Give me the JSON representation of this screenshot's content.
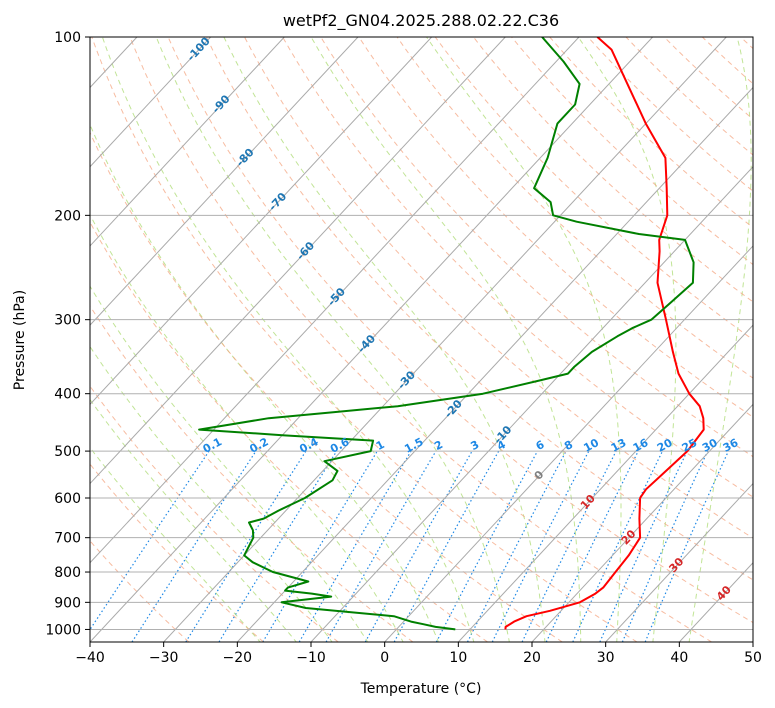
{
  "chart_data": {
    "type": "line",
    "title": "wetPf2_GN04.2025.288.02.22.C36",
    "xlabel": "Temperature (°C)",
    "ylabel": "Pressure (hPa)",
    "xlim": [
      -40,
      50
    ],
    "ylim": [
      1050,
      100
    ],
    "y_scale": "log",
    "grid": true,
    "x_ticks": [
      "−40",
      "−30",
      "−20",
      "−10",
      "0",
      "10",
      "20",
      "30",
      "40",
      "50"
    ],
    "x_tick_values": [
      -40,
      -30,
      -20,
      -10,
      0,
      10,
      20,
      30,
      40,
      50
    ],
    "y_ticks": [
      "100",
      "200",
      "300",
      "400",
      "500",
      "600",
      "700",
      "800",
      "900",
      "1000"
    ],
    "y_tick_values": [
      100,
      200,
      300,
      400,
      500,
      600,
      700,
      800,
      900,
      1000
    ],
    "colors": {
      "temperature": "#ff0000",
      "dewpoint": "#008000",
      "isotherm": "#aaaaaa",
      "dry_adiabat": "#f4a582",
      "moist_adiabat": "#a6d96a",
      "mixing_ratio": "#1e88e5",
      "isotherm_label": "#1f77b4",
      "adiabat_label": "#d62728"
    },
    "series": [
      {
        "id": "temperature",
        "pressure": [
          1000,
          990,
          970,
          950,
          930,
          900,
          870,
          850,
          800,
          750,
          700,
          650,
          600,
          580,
          550,
          500,
          460,
          440,
          420,
          400,
          370,
          340,
          300,
          260,
          230,
          220,
          200,
          180,
          160,
          140,
          120,
          105,
          100
        ],
        "temperature": [
          14.8,
          14.5,
          15,
          16,
          18.5,
          21.5,
          22.5,
          22.8,
          22.5,
          22.2,
          21.5,
          19,
          16.5,
          16.2,
          16.5,
          17,
          16.5,
          15,
          13,
          10,
          6,
          2.5,
          -2.5,
          -8.3,
          -12,
          -13.5,
          -15.5,
          -19,
          -23,
          -30,
          -37.5,
          -44,
          -47.5
        ]
      },
      {
        "id": "dewpoint",
        "pressure": [
          1000,
          990,
          980,
          970,
          950,
          920,
          900,
          880,
          870,
          860,
          850,
          830,
          800,
          770,
          750,
          700,
          680,
          660,
          650,
          630,
          600,
          560,
          540,
          520,
          500,
          480,
          470,
          460,
          440,
          430,
          420,
          400,
          380,
          370,
          360,
          340,
          320,
          310,
          300,
          280,
          260,
          240,
          220,
          215,
          205,
          200,
          190,
          180,
          160,
          140,
          130,
          120,
          110,
          100
        ],
        "temperature": [
          8,
          5,
          3,
          1,
          -2,
          -15,
          -19,
          -13,
          -16,
          -20,
          -20,
          -18,
          -24,
          -28,
          -30,
          -31,
          -32,
          -33.5,
          -32,
          -31,
          -29,
          -27.5,
          -28,
          -31,
          -26,
          -27,
          -40,
          -52,
          -44,
          -36,
          -28,
          -18,
          -12,
          -9,
          -9,
          -8.5,
          -7,
          -6,
          -4.5,
          -4,
          -3.5,
          -6,
          -10,
          -17,
          -27,
          -31,
          -33,
          -37,
          -39,
          -42,
          -42,
          -44,
          -49,
          -55
        ]
      }
    ],
    "isotherm_labels": [
      "-100",
      "-90",
      "-80",
      "-70",
      "-60",
      "-50",
      "-40",
      "-30",
      "-20",
      "-10"
    ],
    "isotherm_label_values": [
      -100,
      -90,
      -80,
      -70,
      -60,
      -50,
      -40,
      -30,
      -20,
      -10
    ],
    "mixing_ratio_labels": [
      "0.1",
      "0.2",
      "0.4",
      "0.6",
      "1",
      "1.5",
      "2",
      "3",
      "4",
      "6",
      "8",
      "10",
      "13",
      "16",
      "20",
      "25",
      "30",
      "36"
    ],
    "mixing_ratio_values": [
      0.1,
      0.2,
      0.4,
      0.6,
      1,
      1.5,
      2,
      3,
      4,
      6,
      8,
      10,
      13,
      16,
      20,
      25,
      30,
      36
    ],
    "zero_label": "0",
    "adiabat_labels": [
      "10",
      "20",
      "30",
      "40"
    ],
    "adiabat_label_values": [
      10,
      20,
      30,
      40
    ]
  }
}
